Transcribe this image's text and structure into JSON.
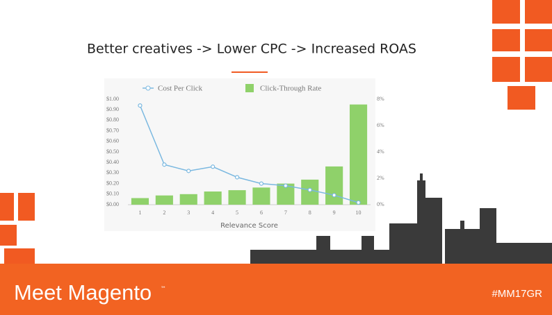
{
  "slide": {
    "title": "Better creatives -> Lower CPC -> Increased ROAS",
    "brand": "Meet Magento",
    "trademark": "™",
    "hashtag": "#MM17GR"
  },
  "chart_data": {
    "type": "combo",
    "categories": [
      "1",
      "2",
      "3",
      "4",
      "5",
      "6",
      "7",
      "8",
      "9",
      "10"
    ],
    "xlabel": "Relevance Score",
    "legend": "top",
    "series": [
      {
        "name": "Cost Per Click",
        "type": "line",
        "color": "#7ab8e0",
        "values": [
          0.94,
          0.38,
          0.32,
          0.36,
          0.26,
          0.2,
          0.18,
          0.14,
          0.09,
          0.02
        ]
      },
      {
        "name": "Click-Through Rate",
        "type": "bar",
        "axis": "y2",
        "color": "#8fd16a",
        "values": [
          0.5,
          0.7,
          0.8,
          1.0,
          1.1,
          1.3,
          1.6,
          1.9,
          2.9,
          7.6
        ]
      }
    ],
    "ylim": [
      0,
      1
    ],
    "yticks": [
      {
        "value": 0,
        "label": "$0.00"
      },
      {
        "value": 0.1,
        "label": "$0.10"
      },
      {
        "value": 0.2,
        "label": "$0.20"
      },
      {
        "value": 0.3,
        "label": "$0.30"
      },
      {
        "value": 0.4,
        "label": "$0.40"
      },
      {
        "value": 0.5,
        "label": "$0.50"
      },
      {
        "value": 0.6,
        "label": "$0.60"
      },
      {
        "value": 0.7,
        "label": "$0.70"
      },
      {
        "value": 0.8,
        "label": "$0.80"
      },
      {
        "value": 0.9,
        "label": "$0.90"
      },
      {
        "value": 1,
        "label": "$1.00"
      }
    ],
    "y2lim": [
      0,
      8
    ],
    "y2ticks": [
      {
        "value": 0,
        "label": "0%"
      },
      {
        "value": 2,
        "label": "2%"
      },
      {
        "value": 4,
        "label": "4%"
      },
      {
        "value": 6,
        "label": "6%"
      },
      {
        "value": 8,
        "label": "8%"
      }
    ]
  }
}
